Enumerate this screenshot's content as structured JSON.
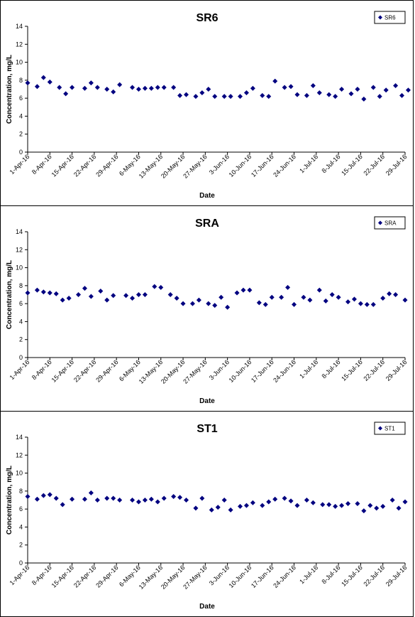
{
  "chart_data": [
    {
      "type": "scatter",
      "title": "SR6",
      "xlabel": "Date",
      "ylabel": "Concentration, mg/L",
      "ylim": [
        0,
        14
      ],
      "yticks": [
        "0",
        "2",
        "4",
        "6",
        "8",
        "10",
        "12",
        "14"
      ],
      "xlim": [
        "1-Apr-16",
        "29-Jul-16"
      ],
      "xticks": [
        "1-Apr-16",
        "8-Apr-16",
        "15-Apr-16",
        "22-Apr-16",
        "29-Apr-16",
        "6-May-16",
        "13-May-16",
        "20-May-16",
        "27-May-16",
        "3-Jun-16",
        "10-Jun-16",
        "17-Jun-16",
        "24-Jun-16",
        "1-Jul-16",
        "8-Jul-16",
        "15-Jul-16",
        "22-Jul-16",
        "29-Jul-16"
      ],
      "grid": false,
      "legend": "top-right",
      "color": "#000080",
      "series": [
        {
          "name": "SR6",
          "x": [
            "2016-04-01",
            "2016-04-04",
            "2016-04-06",
            "2016-04-08",
            "2016-04-11",
            "2016-04-13",
            "2016-04-15",
            "2016-04-19",
            "2016-04-21",
            "2016-04-23",
            "2016-04-26",
            "2016-04-28",
            "2016-04-30",
            "2016-05-04",
            "2016-05-06",
            "2016-05-08",
            "2016-05-10",
            "2016-05-12",
            "2016-05-14",
            "2016-05-17",
            "2016-05-19",
            "2016-05-21",
            "2016-05-24",
            "2016-05-26",
            "2016-05-28",
            "2016-05-30",
            "2016-06-02",
            "2016-06-04",
            "2016-06-07",
            "2016-06-09",
            "2016-06-11",
            "2016-06-14",
            "2016-06-16",
            "2016-06-18",
            "2016-06-21",
            "2016-06-23",
            "2016-06-25",
            "2016-06-28",
            "2016-06-30",
            "2016-07-02",
            "2016-07-05",
            "2016-07-07",
            "2016-07-09",
            "2016-07-12",
            "2016-07-14",
            "2016-07-16",
            "2016-07-19",
            "2016-07-21",
            "2016-07-23",
            "2016-07-26",
            "2016-07-28",
            "2016-07-30"
          ],
          "y": [
            7.7,
            7.3,
            8.3,
            7.8,
            7.2,
            6.5,
            7.2,
            7.1,
            7.7,
            7.2,
            7.0,
            6.7,
            7.5,
            7.2,
            7.0,
            7.1,
            7.1,
            7.2,
            7.2,
            7.2,
            6.3,
            6.4,
            6.2,
            6.6,
            7.0,
            6.2,
            6.2,
            6.2,
            6.2,
            6.6,
            7.1,
            6.3,
            6.2,
            7.9,
            7.2,
            7.3,
            6.4,
            6.3,
            7.4,
            6.6,
            6.4,
            6.2,
            7.0,
            6.5,
            7.0,
            5.9,
            7.2,
            6.2,
            6.9,
            7.4,
            6.3,
            6.9
          ]
        }
      ]
    },
    {
      "type": "scatter",
      "title": "SRA",
      "xlabel": "Date",
      "ylabel": "Concentration, mg/L",
      "ylim": [
        0,
        14
      ],
      "yticks": [
        "0",
        "2",
        "4",
        "6",
        "8",
        "10",
        "12",
        "14"
      ],
      "xlim": [
        "1-Apr-16",
        "29-Jul-16"
      ],
      "xticks": [
        "1-Apr-16",
        "8-Apr-16",
        "15-Apr-16",
        "22-Apr-16",
        "29-Apr-16",
        "6-May-16",
        "13-May-16",
        "20-May-16",
        "27-May-16",
        "3-Jun-16",
        "10-Jun-16",
        "17-Jun-16",
        "24-Jun-16",
        "1-Jul-16",
        "8-Jul-16",
        "15-Jul-16",
        "22-Jul-16",
        "29-Jul-16"
      ],
      "grid": false,
      "legend": "top-right",
      "color": "#000080",
      "series": [
        {
          "name": "SRA",
          "x": [
            "2016-04-01",
            "2016-04-04",
            "2016-04-06",
            "2016-04-08",
            "2016-04-10",
            "2016-04-12",
            "2016-04-14",
            "2016-04-17",
            "2016-04-19",
            "2016-04-21",
            "2016-04-24",
            "2016-04-26",
            "2016-04-28",
            "2016-05-02",
            "2016-05-04",
            "2016-05-06",
            "2016-05-08",
            "2016-05-11",
            "2016-05-13",
            "2016-05-16",
            "2016-05-18",
            "2016-05-20",
            "2016-05-23",
            "2016-05-25",
            "2016-05-28",
            "2016-05-30",
            "2016-06-01",
            "2016-06-03",
            "2016-06-06",
            "2016-06-08",
            "2016-06-10",
            "2016-06-13",
            "2016-06-15",
            "2016-06-17",
            "2016-06-20",
            "2016-06-22",
            "2016-06-24",
            "2016-06-27",
            "2016-06-29",
            "2016-07-02",
            "2016-07-04",
            "2016-07-06",
            "2016-07-08",
            "2016-07-11",
            "2016-07-13",
            "2016-07-15",
            "2016-07-17",
            "2016-07-19",
            "2016-07-22",
            "2016-07-24",
            "2016-07-26",
            "2016-07-29"
          ],
          "y": [
            7.2,
            7.5,
            7.3,
            7.2,
            7.1,
            6.4,
            6.6,
            7.0,
            7.7,
            6.8,
            7.4,
            6.4,
            6.9,
            6.9,
            6.6,
            7.0,
            7.0,
            7.9,
            7.8,
            7.0,
            6.6,
            6.0,
            6.0,
            6.4,
            6.0,
            5.8,
            6.7,
            5.6,
            7.2,
            7.5,
            7.5,
            6.1,
            5.9,
            6.7,
            6.7,
            7.8,
            5.9,
            6.7,
            6.4,
            7.5,
            6.3,
            7.0,
            6.7,
            6.2,
            6.5,
            6.0,
            5.9,
            5.9,
            6.6,
            7.1,
            7.0,
            6.4
          ]
        }
      ]
    },
    {
      "type": "scatter",
      "title": "ST1",
      "xlabel": "Date",
      "ylabel": "Concentration, mg/L",
      "ylim": [
        0,
        14
      ],
      "yticks": [
        "0",
        "2",
        "4",
        "6",
        "8",
        "10",
        "12",
        "14"
      ],
      "xlim": [
        "1-Apr-16",
        "29-Jul-16"
      ],
      "xticks": [
        "1-Apr-16",
        "8-Apr-16",
        "15-Apr-16",
        "22-Apr-16",
        "29-Apr-16",
        "6-May-16",
        "13-May-16",
        "20-May-16",
        "27-May-16",
        "3-Jun-16",
        "10-Jun-16",
        "17-Jun-16",
        "24-Jun-16",
        "1-Jul-16",
        "8-Jul-16",
        "15-Jul-16",
        "22-Jul-16",
        "29-Jul-16"
      ],
      "grid": false,
      "legend": "top-right",
      "color": "#000080",
      "series": [
        {
          "name": "ST1",
          "x": [
            "2016-04-01",
            "2016-04-04",
            "2016-04-06",
            "2016-04-08",
            "2016-04-10",
            "2016-04-12",
            "2016-04-15",
            "2016-04-19",
            "2016-04-21",
            "2016-04-23",
            "2016-04-26",
            "2016-04-28",
            "2016-04-30",
            "2016-05-04",
            "2016-05-06",
            "2016-05-08",
            "2016-05-10",
            "2016-05-12",
            "2016-05-14",
            "2016-05-17",
            "2016-05-19",
            "2016-05-21",
            "2016-05-24",
            "2016-05-26",
            "2016-05-29",
            "2016-05-31",
            "2016-06-02",
            "2016-06-04",
            "2016-06-07",
            "2016-06-09",
            "2016-06-11",
            "2016-06-14",
            "2016-06-16",
            "2016-06-18",
            "2016-06-21",
            "2016-06-23",
            "2016-06-25",
            "2016-06-28",
            "2016-06-30",
            "2016-07-03",
            "2016-07-05",
            "2016-07-07",
            "2016-07-09",
            "2016-07-11",
            "2016-07-14",
            "2016-07-16",
            "2016-07-18",
            "2016-07-20",
            "2016-07-22",
            "2016-07-25",
            "2016-07-27",
            "2016-07-29"
          ],
          "y": [
            7.4,
            7.1,
            7.5,
            7.6,
            7.2,
            6.5,
            7.1,
            7.1,
            7.8,
            7.0,
            7.2,
            7.2,
            7.0,
            7.0,
            6.8,
            7.0,
            7.1,
            6.8,
            7.2,
            7.4,
            7.3,
            7.0,
            6.1,
            7.2,
            5.9,
            6.2,
            7.0,
            5.9,
            6.3,
            6.4,
            6.7,
            6.4,
            6.8,
            7.1,
            7.2,
            6.9,
            6.4,
            7.0,
            6.7,
            6.5,
            6.5,
            6.3,
            6.4,
            6.6,
            6.6,
            5.8,
            6.4,
            6.1,
            6.3,
            7.0,
            6.1,
            6.8
          ]
        }
      ]
    }
  ]
}
